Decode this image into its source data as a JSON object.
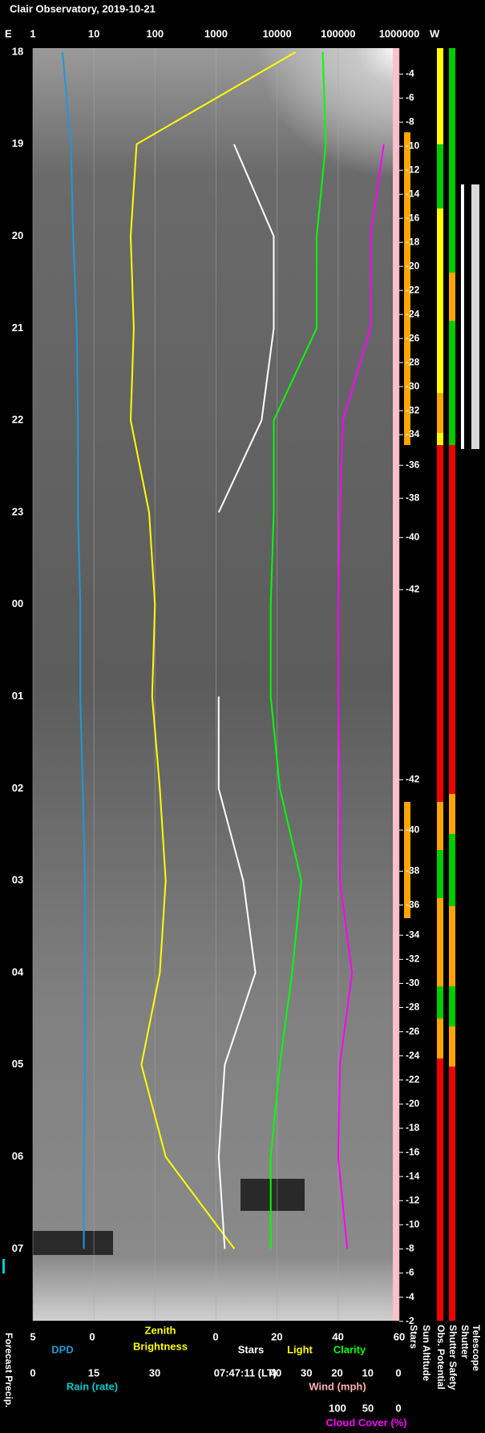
{
  "chart_data": {
    "type": "line",
    "title": "Clair Observatory, 2019-10-21",
    "end_time": "07:47:11 (LT)",
    "times": [
      "18",
      "19",
      "20",
      "21",
      "22",
      "23",
      "00",
      "01",
      "02",
      "03",
      "04",
      "05",
      "06",
      "07"
    ],
    "top_axis": {
      "left_label": "E",
      "right_label": "W",
      "scale": "log",
      "lim": [
        1,
        1000000
      ],
      "ticks": [
        1,
        10,
        100,
        1000,
        10000,
        100000,
        1000000
      ],
      "grid": true
    },
    "axes": {
      "dpd": {
        "labels": [
          {
            "text": "DPD",
            "color": "#1e9ad6"
          }
        ],
        "lim": [
          5,
          0
        ],
        "ticks": [
          5,
          0
        ]
      },
      "zenith": {
        "labels": [
          {
            "text": "Zenith",
            "color": "#ffff00"
          },
          {
            "text": "Brightness",
            "color": "#ffff00"
          }
        ]
      },
      "stars": {
        "labels": [
          {
            "text": "Stars",
            "color": "#ffffff"
          },
          {
            "text": "Light",
            "color": "#ffff00"
          },
          {
            "text": "Clarity",
            "color": "#00ff00"
          }
        ],
        "lim": [
          0,
          60
        ],
        "ticks": [
          0,
          20,
          40,
          60
        ]
      },
      "rain": {
        "labels": [
          {
            "text": "Rain (rate)",
            "color": "#00cccc"
          }
        ],
        "lim": [
          0,
          30
        ],
        "ticks": [
          0,
          15,
          30
        ]
      },
      "wind": {
        "labels": [
          {
            "text": "Wind (mph)",
            "color": "#ffb0b0"
          }
        ],
        "lim": [
          40,
          0
        ],
        "ticks": [
          40,
          30,
          20,
          10,
          0
        ]
      },
      "cloud": {
        "labels": [
          {
            "text": "Cloud Cover (%)",
            "color": "#ff00ff"
          }
        ],
        "lim": [
          100,
          0
        ],
        "ticks": [
          100,
          50,
          0
        ]
      }
    },
    "series": [
      {
        "axis": "dpd",
        "color": "#1e9ad6",
        "values": [
          2.5,
          1.8,
          1.6,
          1.3,
          1.2,
          1.2,
          1.0,
          1.0,
          0.8,
          0.6,
          0.6,
          0.6,
          0.7,
          0.7
        ]
      },
      {
        "axis": "zenith",
        "color": "#ffff00",
        "values": [
          20000,
          50,
          40,
          45,
          40,
          80,
          100,
          90,
          120,
          150,
          120,
          60,
          150,
          2000
        ]
      },
      {
        "axis": "stars",
        "color": "#ffffff",
        "values": [
          null,
          6,
          19,
          19,
          15,
          1,
          null,
          1,
          1,
          9,
          13,
          3,
          1,
          3
        ]
      },
      {
        "axis": "stars",
        "color": "#00ff00",
        "values": [
          35,
          36,
          33,
          33,
          19,
          19,
          18,
          18,
          21,
          28,
          25,
          21,
          18,
          18
        ]
      },
      {
        "axis": "cloud",
        "color": "#ff00ff",
        "values": [
          null,
          24,
          46,
          46,
          91,
          96,
          99,
          99,
          96,
          96,
          76,
          96,
          99,
          84
        ]
      }
    ],
    "sun_altitude": {
      "evening": [
        -4,
        -6,
        -8,
        -10,
        -12,
        -14,
        -16,
        -18,
        -20,
        -22,
        -24,
        -26,
        -28,
        -30,
        -32,
        -34,
        -36,
        -38,
        -40,
        -42
      ],
      "morning": [
        -42,
        -40,
        -38,
        -36,
        -34,
        -32,
        -30,
        -28,
        -26,
        -24,
        -22,
        -20,
        -18,
        -16,
        -14,
        -12,
        -10,
        -8,
        -6,
        -4,
        -2
      ]
    },
    "column_labels": {
      "left": "Forecast Precip.",
      "right": [
        "Stars",
        "Sun Altitude",
        "Obs. Potential",
        "Shutter Safety",
        "Shutter",
        "Telescope"
      ]
    }
  }
}
